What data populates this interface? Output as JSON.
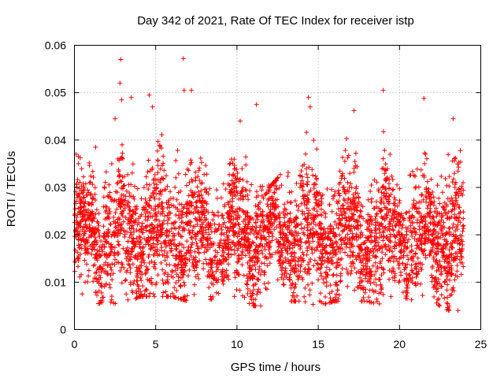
{
  "chart_data": {
    "type": "scatter",
    "title": "Day 342 of 2021, Rate Of TEC Index for receiver istp",
    "xlabel": "GPS time / hours",
    "ylabel": "ROTI / TECUs",
    "xlim": [
      0,
      25
    ],
    "ylim": [
      0,
      0.06
    ],
    "x_ticks": [
      0,
      5,
      10,
      15,
      20,
      25
    ],
    "y_ticks": [
      0,
      0.01,
      0.02,
      0.03,
      0.04,
      0.05,
      0.06
    ],
    "x_tick_labels": [
      "0",
      "5",
      "10",
      "15",
      "20",
      "25"
    ],
    "y_tick_labels": [
      "0",
      "0.01",
      "0.02",
      "0.03",
      "0.04",
      "0.05",
      "0.06"
    ],
    "grid": true,
    "marker": "plus",
    "color": "#ff0000",
    "series": [
      {
        "name": "ROTI",
        "x_range": [
          0,
          23.95
        ],
        "sample_count_estimate": 4000,
        "typical_range": [
          0.005,
          0.035
        ],
        "central_value": 0.02,
        "envelope": {
          "hours": [
            0,
            1,
            2,
            3,
            4,
            5,
            6,
            7,
            8,
            9,
            10,
            11,
            12,
            13,
            14,
            15,
            16,
            17,
            18,
            19,
            20,
            21,
            22,
            23,
            24
          ],
          "lower": [
            0.007,
            0.005,
            0.006,
            0.005,
            0.007,
            0.007,
            0.007,
            0.006,
            0.006,
            0.007,
            0.007,
            0.005,
            0.005,
            0.006,
            0.006,
            0.005,
            0.006,
            0.006,
            0.006,
            0.005,
            0.007,
            0.006,
            0.006,
            0.004,
            0.005
          ],
          "upper": [
            0.037,
            0.035,
            0.036,
            0.042,
            0.043,
            0.044,
            0.046,
            0.04,
            0.035,
            0.032,
            0.038,
            0.04,
            0.03,
            0.034,
            0.045,
            0.038,
            0.043,
            0.04,
            0.041,
            0.042,
            0.03,
            0.04,
            0.035,
            0.043,
            0.037
          ]
        },
        "notable_points": [
          {
            "x": 0.1,
            "y": 0.037
          },
          {
            "x": 1.3,
            "y": 0.0385
          },
          {
            "x": 2.5,
            "y": 0.0445
          },
          {
            "x": 2.8,
            "y": 0.052
          },
          {
            "x": 2.85,
            "y": 0.057
          },
          {
            "x": 2.9,
            "y": 0.0485
          },
          {
            "x": 3.5,
            "y": 0.049
          },
          {
            "x": 4.6,
            "y": 0.0495
          },
          {
            "x": 4.8,
            "y": 0.047
          },
          {
            "x": 6.7,
            "y": 0.0572
          },
          {
            "x": 6.75,
            "y": 0.0505
          },
          {
            "x": 7.2,
            "y": 0.0505
          },
          {
            "x": 10.2,
            "y": 0.044
          },
          {
            "x": 11.2,
            "y": 0.0475
          },
          {
            "x": 14.4,
            "y": 0.049
          },
          {
            "x": 14.5,
            "y": 0.047
          },
          {
            "x": 17.2,
            "y": 0.0462
          },
          {
            "x": 19.0,
            "y": 0.0505
          },
          {
            "x": 21.5,
            "y": 0.0488
          },
          {
            "x": 23.3,
            "y": 0.0445
          },
          {
            "x": 23.6,
            "y": 0.004
          }
        ]
      }
    ]
  }
}
